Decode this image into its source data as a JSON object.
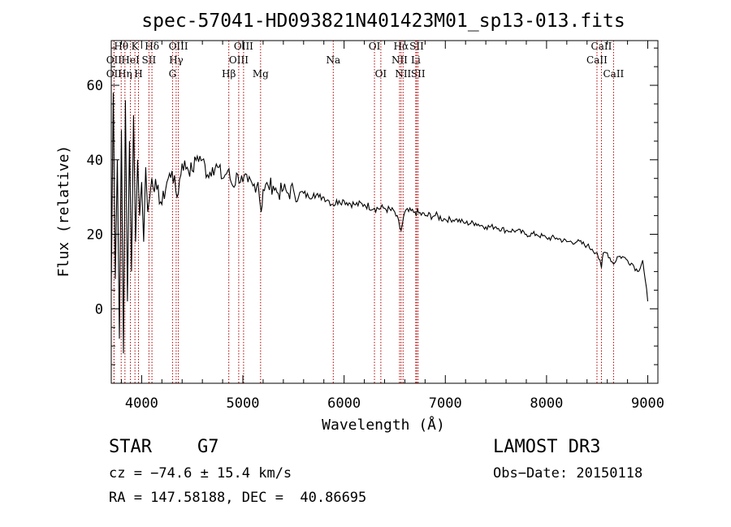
{
  "chart_data": {
    "type": "line",
    "title": "spec-57041-HD093821N401423M01_sp13-013.fits",
    "xlabel": "Wavelength (Å)",
    "ylabel": "Flux (relative)",
    "xlim": [
      3700,
      9100
    ],
    "ylim": [
      -20,
      72
    ],
    "xticks": [
      4000,
      5000,
      6000,
      7000,
      8000,
      9000
    ],
    "xtick_labels": [
      "4000",
      "5000",
      "6000",
      "7000",
      "8000",
      "9000"
    ],
    "yticks": [
      0,
      20,
      40,
      60
    ],
    "ytick_labels": [
      "0",
      "20",
      "40",
      "60"
    ],
    "series": [
      {
        "name": "spectrum",
        "x": [
          3700,
          3720,
          3740,
          3760,
          3780,
          3800,
          3820,
          3840,
          3860,
          3880,
          3900,
          3920,
          3940,
          3960,
          3980,
          4000,
          4020,
          4040,
          4060,
          4080,
          4100,
          4150,
          4200,
          4250,
          4300,
          4350,
          4400,
          4450,
          4500,
          4550,
          4600,
          4650,
          4700,
          4750,
          4800,
          4850,
          4900,
          4950,
          5000,
          5050,
          5100,
          5150,
          5180,
          5200,
          5250,
          5300,
          5350,
          5400,
          5450,
          5500,
          5550,
          5600,
          5650,
          5700,
          5750,
          5800,
          5850,
          5890,
          5950,
          6000,
          6100,
          6200,
          6300,
          6400,
          6500,
          6563,
          6600,
          6700,
          6800,
          6900,
          7000,
          7100,
          7200,
          7300,
          7400,
          7500,
          7600,
          7700,
          7800,
          7900,
          8000,
          8100,
          8200,
          8300,
          8400,
          8450,
          8500,
          8542,
          8560,
          8600,
          8662,
          8700,
          8750,
          8800,
          8850,
          8900,
          8950,
          9000
        ],
        "y": [
          5,
          58,
          8,
          40,
          -8,
          48,
          -12,
          56,
          2,
          45,
          10,
          52,
          18,
          40,
          25,
          34,
          18,
          38,
          26,
          30,
          35,
          32,
          28,
          34,
          37,
          30,
          39,
          38,
          37,
          41,
          40,
          36,
          38,
          38,
          35,
          37,
          33,
          36,
          34,
          34,
          33,
          34,
          26,
          32,
          33,
          33,
          31,
          32,
          31,
          32,
          30,
          31,
          30,
          31,
          30,
          30,
          29,
          28,
          29,
          29,
          28,
          28,
          27,
          27,
          26,
          21,
          26,
          26,
          25,
          25,
          24,
          24,
          23,
          23,
          22,
          22,
          21,
          21,
          20,
          20,
          19,
          19,
          18,
          18,
          17,
          16,
          15,
          11,
          15,
          15,
          12,
          14,
          14,
          13,
          12,
          10,
          13,
          2
        ]
      }
    ],
    "line_markers": [
      {
        "label": "OII",
        "x": 3727,
        "row": 2
      },
      {
        "label": "Hθ",
        "x": 3798,
        "row": 1
      },
      {
        "label": "OII",
        "x": 3727,
        "row": 3
      },
      {
        "label": "HeI",
        "x": 3889,
        "row": 2
      },
      {
        "label": "Hη",
        "x": 3835,
        "row": 3
      },
      {
        "label": "K",
        "x": 3934,
        "row": 1
      },
      {
        "label": "H",
        "x": 3969,
        "row": 3
      },
      {
        "label": "SII",
        "x": 4072,
        "row": 2
      },
      {
        "label": "Hδ",
        "x": 4102,
        "row": 1
      },
      {
        "label": "OIII",
        "x": 4363,
        "row": 1
      },
      {
        "label": "Hγ",
        "x": 4341,
        "row": 2
      },
      {
        "label": "G",
        "x": 4305,
        "row": 3
      },
      {
        "label": "Hβ",
        "x": 4861,
        "row": 3
      },
      {
        "label": "OIII",
        "x": 5007,
        "row": 1
      },
      {
        "label": "OIII",
        "x": 4959,
        "row": 2
      },
      {
        "label": "Mg",
        "x": 5175,
        "row": 3
      },
      {
        "label": "Na",
        "x": 5893,
        "row": 2
      },
      {
        "label": "OI",
        "x": 6300,
        "row": 1
      },
      {
        "label": "OI",
        "x": 6363,
        "row": 3
      },
      {
        "label": "Hα",
        "x": 6563,
        "row": 1
      },
      {
        "label": "NII",
        "x": 6548,
        "row": 2
      },
      {
        "label": "NII",
        "x": 6583,
        "row": 3
      },
      {
        "label": "SII",
        "x": 6717,
        "row": 1
      },
      {
        "label": "Li",
        "x": 6708,
        "row": 2
      },
      {
        "label": "SII",
        "x": 6731,
        "row": 3
      },
      {
        "label": "CaII",
        "x": 8542,
        "row": 1
      },
      {
        "label": "CaII",
        "x": 8498,
        "row": 2
      },
      {
        "label": "CaII",
        "x": 8662,
        "row": 3
      }
    ]
  },
  "info": {
    "object_class": "STAR",
    "subclass": "G7",
    "survey": "LAMOST DR3",
    "cz": "cz = −74.6 ± 15.4 km/s",
    "obs_date": "Obs−Date: 20150118",
    "coords": "RA = 147.58188, DEC =  40.86695"
  }
}
